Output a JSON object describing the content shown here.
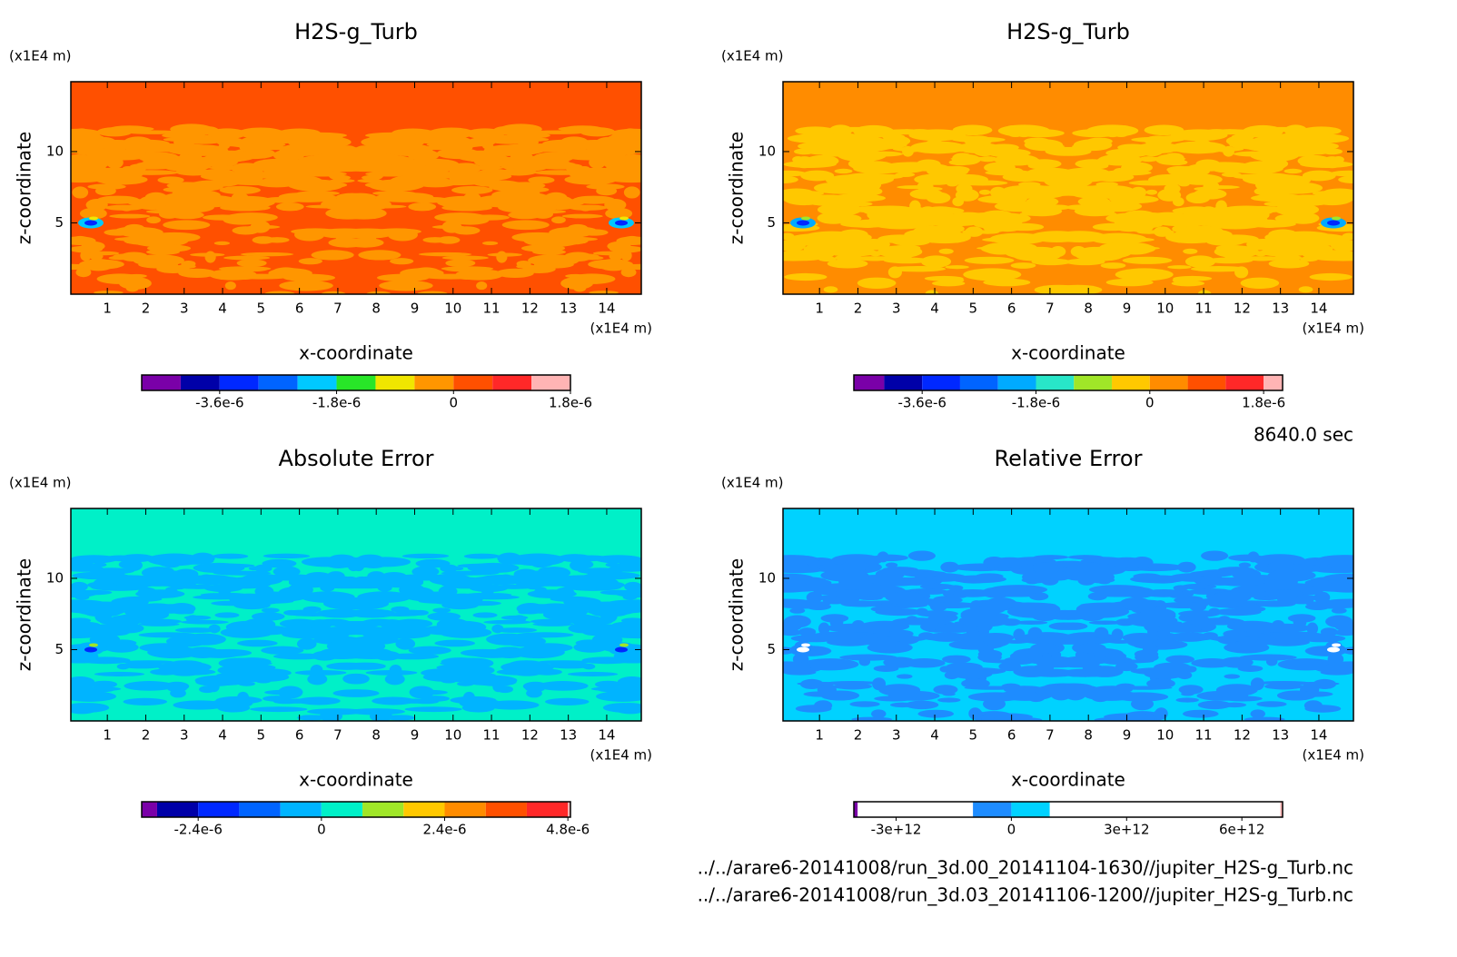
{
  "chart_data": [
    {
      "type": "contour",
      "title": "H2S-g_Turb",
      "xlabel": "x-coordinate",
      "ylabel": "z-coordinate",
      "xunit": "(x1E4 m)",
      "yunit": "(x1E4 m)",
      "xlim": [
        0.05,
        14.9
      ],
      "ylim": [
        0,
        14.9
      ],
      "xticks": [
        1,
        2,
        3,
        4,
        5,
        6,
        7,
        8,
        9,
        10,
        11,
        12,
        13,
        14
      ],
      "yticks": [
        5,
        10
      ],
      "colorbar": {
        "levels": [
          -4.8e-06,
          -4.2e-06,
          -3.6e-06,
          -3e-06,
          -2.4e-06,
          -1.8e-06,
          -1.2e-06,
          -6e-07,
          0,
          6e-07,
          1.2e-06,
          1.8e-06
        ],
        "colors": [
          "#7a00a8",
          "#0000a8",
          "#0028ff",
          "#0064ff",
          "#00c8ff",
          "#28e628",
          "#f0e600",
          "#ff9600",
          "#ff5000",
          "#ff2828",
          "#ffb4b4"
        ],
        "ticks": [
          {
            "value": -3.6e-06,
            "label": "-3.6e-6"
          },
          {
            "value": -1.8e-06,
            "label": "-1.8e-6"
          },
          0,
          {
            "value": 1.8e-06,
            "label": "1.8e-6"
          }
        ]
      }
    },
    {
      "type": "contour",
      "title": "H2S-g_Turb",
      "xlabel": "x-coordinate",
      "ylabel": "z-coordinate",
      "xunit": "(x1E4 m)",
      "yunit": "(x1E4 m)",
      "xlim": [
        0.05,
        14.9
      ],
      "ylim": [
        0,
        14.9
      ],
      "xticks": [
        1,
        2,
        3,
        4,
        5,
        6,
        7,
        8,
        9,
        10,
        11,
        12,
        13,
        14
      ],
      "yticks": [
        5,
        10
      ],
      "colorbar": {
        "levels": [
          -4.68e-06,
          -4.2e-06,
          -3.6e-06,
          -3e-06,
          -2.4e-06,
          -1.8e-06,
          -1.2e-06,
          -6e-07,
          0,
          6e-07,
          1.2e-06,
          1.8e-06,
          2.1e-06
        ],
        "colors": [
          "#7a00a8",
          "#0000a8",
          "#0028ff",
          "#0064ff",
          "#00aaff",
          "#28e6c8",
          "#a0e628",
          "#ffc800",
          "#ff8c00",
          "#ff5000",
          "#ff2828",
          "#ffb4b4"
        ],
        "ticks": [
          {
            "value": -3.6e-06,
            "label": "-3.6e-6"
          },
          {
            "value": -1.8e-06,
            "label": "-1.8e-6"
          },
          0,
          {
            "value": 1.8e-06,
            "label": "1.8e-6"
          }
        ]
      }
    },
    {
      "type": "contour",
      "title": "Absolute Error",
      "xlabel": "x-coordinate",
      "ylabel": "z-coordinate",
      "xunit": "(x1E4 m)",
      "yunit": "(x1E4 m)",
      "xlim": [
        0.05,
        14.9
      ],
      "ylim": [
        0,
        14.9
      ],
      "xticks": [
        1,
        2,
        3,
        4,
        5,
        6,
        7,
        8,
        9,
        10,
        11,
        12,
        13,
        14
      ],
      "yticks": [
        5,
        10
      ],
      "colorbar": {
        "levels": [
          -3.5e-06,
          -3.2e-06,
          -2.4e-06,
          -1.6e-06,
          -8e-07,
          0,
          8e-07,
          1.6e-06,
          2.4e-06,
          3.2e-06,
          4e-06,
          4.8e-06,
          4.85e-06
        ],
        "colors": [
          "#7a00a8",
          "#0000a8",
          "#0028ff",
          "#0064ff",
          "#00b4ff",
          "#00f0c8",
          "#a0e628",
          "#ffc800",
          "#ff8c00",
          "#ff5000",
          "#ff2828",
          "#ffb4b4"
        ],
        "ticks": [
          {
            "value": -2.4e-06,
            "label": "-2.4e-6"
          },
          0,
          {
            "value": 2.4e-06,
            "label": "2.4e-6"
          },
          {
            "value": 4.8e-06,
            "label": "4.8e-6"
          }
        ]
      }
    },
    {
      "type": "contour",
      "title": "Relative Error",
      "xlabel": "x-coordinate",
      "ylabel": "z-coordinate",
      "xunit": "(x1E4 m)",
      "yunit": "(x1E4 m)",
      "xlim": [
        0.05,
        14.9
      ],
      "ylim": [
        0,
        14.9
      ],
      "xticks": [
        1,
        2,
        3,
        4,
        5,
        6,
        7,
        8,
        9,
        10,
        11,
        12,
        13,
        14
      ],
      "yticks": [
        5,
        10
      ],
      "colorbar": {
        "levels": [
          -4100000000000.0,
          -4000000000000.0,
          -3000000000000.0,
          -2000000000000.0,
          -1000000000000.0,
          0,
          1000000000000.0,
          2000000000000.0,
          3000000000000.0,
          4000000000000.0,
          5000000000000.0,
          6000000000000.0,
          7000000000000.0,
          7060000000000.0
        ],
        "colors": [
          "#7a00a8",
          "#ffffff",
          "#ffffff",
          "#ffffff",
          "#1e8cff",
          "#00d2ff",
          "#ffffff",
          "#ffffff",
          "#ffffff",
          "#ffffff",
          "#ffffff",
          "#ffffff",
          "#ffb4b4"
        ],
        "ticks": [
          {
            "value": -3000000000000.0,
            "label": "-3e+12"
          },
          0,
          {
            "value": 3000000000000.0,
            "label": "3e+12"
          },
          {
            "value": 6000000000000.0,
            "label": "6e+12"
          }
        ]
      }
    }
  ],
  "annotations": {
    "time": "8640.0 sec",
    "files": [
      "../../arare6-20141008/run_3d.00_20141104-1630//jupiter_H2S-g_Turb.nc",
      "../../arare6-20141008/run_3d.03_20141106-1200//jupiter_H2S-g_Turb.nc"
    ]
  }
}
